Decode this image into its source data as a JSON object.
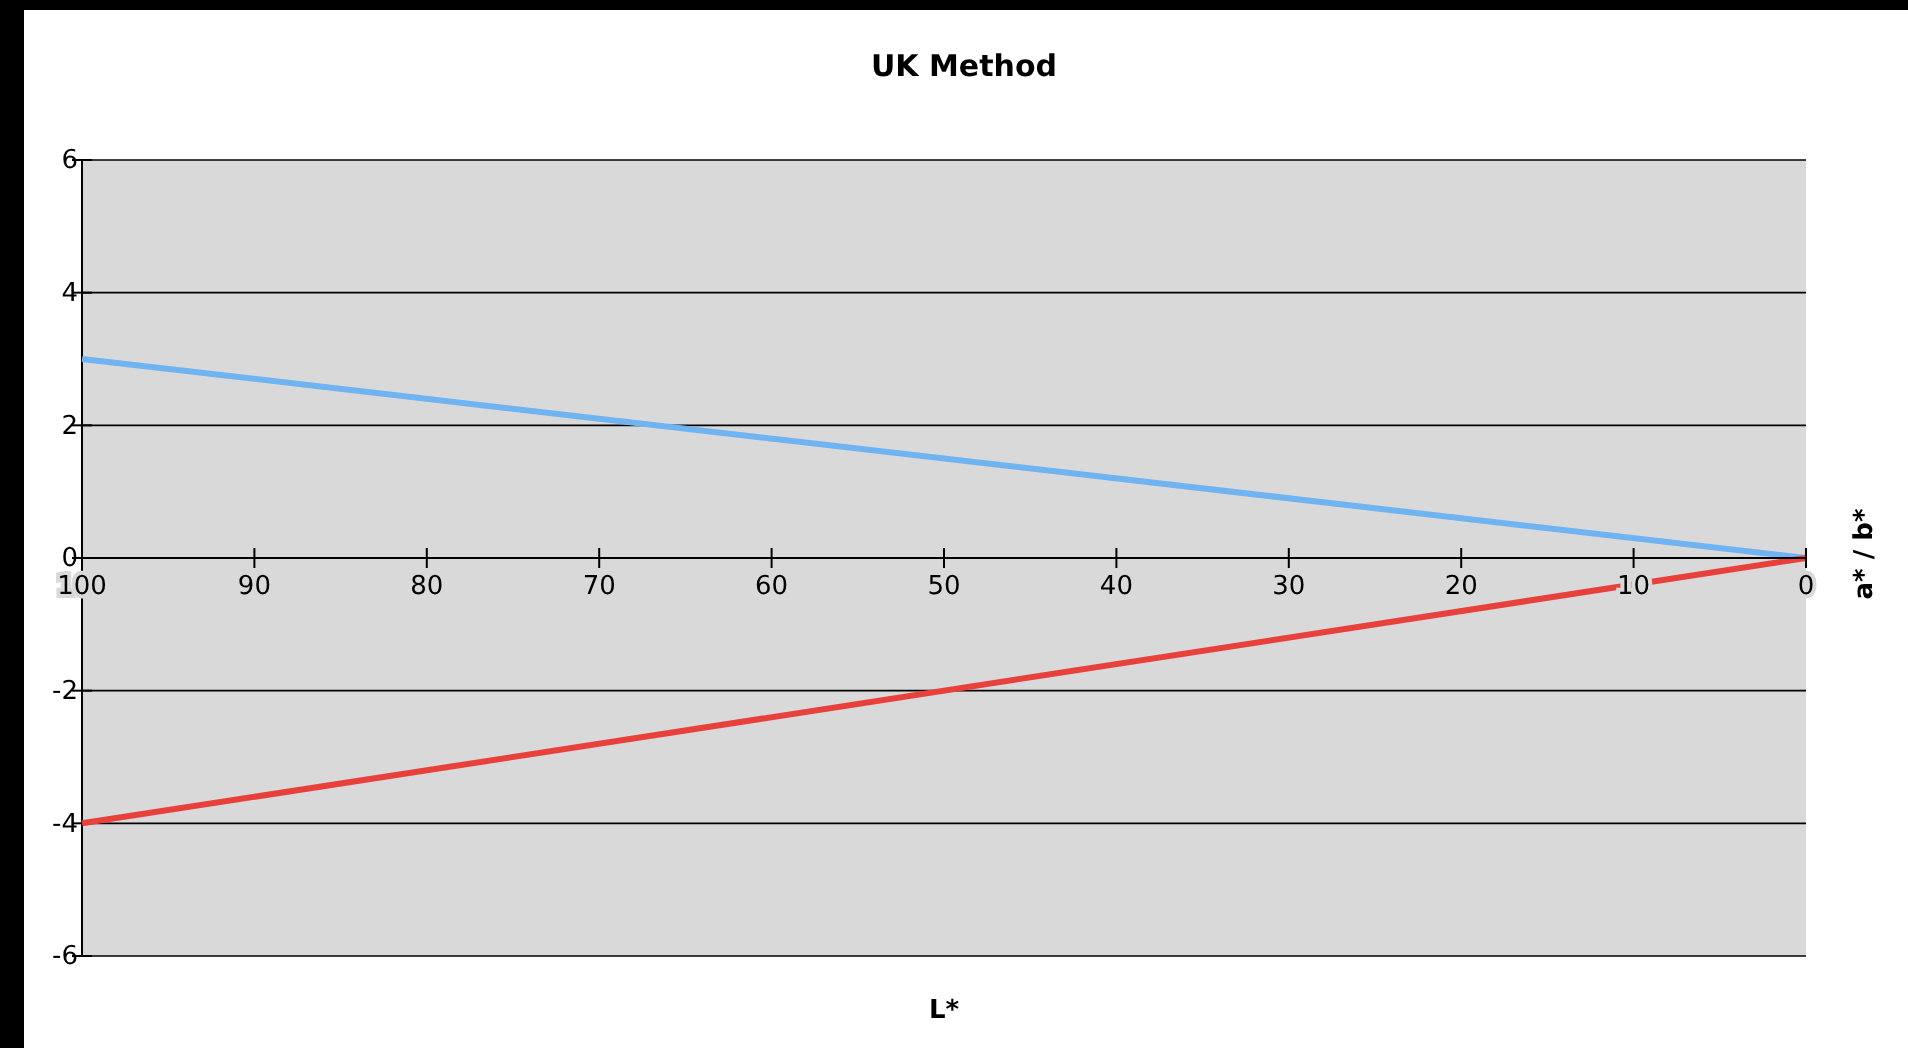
{
  "chart_data": {
    "type": "line",
    "title": "UK Method",
    "xlabel": "L*",
    "ylabel": "a* / b*",
    "xlim": [
      100,
      0
    ],
    "xticks": [
      100,
      90,
      80,
      70,
      60,
      50,
      40,
      30,
      20,
      10,
      0
    ],
    "ylim": [
      -6,
      6
    ],
    "yticks": [
      -6,
      -4,
      -2,
      0,
      2,
      4,
      6
    ],
    "grid": "y",
    "x": [
      100,
      0
    ],
    "marker": "none",
    "line_style": "solid",
    "series": [
      {
        "color": "#6fb3f0",
        "values": [
          3,
          0
        ]
      },
      {
        "color": "#e8403a",
        "values": [
          -4,
          0
        ]
      }
    ]
  }
}
